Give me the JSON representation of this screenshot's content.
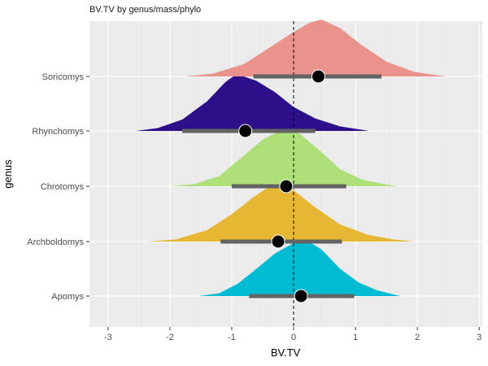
{
  "chart_data": {
    "type": "ridgeline",
    "title": "BV.TV by genus/mass/phylo",
    "xlabel": "BV.TV",
    "ylabel": "genus",
    "xlim": [
      -3.3,
      3.05
    ],
    "x_ticks": [
      "-3",
      "-2",
      "-1",
      "0",
      "1",
      "2",
      "3"
    ],
    "grid": true,
    "reference_line": {
      "x": 0,
      "style": "dashed"
    },
    "series": [
      {
        "name": "Apomys",
        "color": "#00BCD3",
        "density": [
          [
            -1.52,
            0.0
          ],
          [
            -1.2,
            0.05
          ],
          [
            -0.9,
            0.22
          ],
          [
            -0.6,
            0.48
          ],
          [
            -0.3,
            0.75
          ],
          [
            0.0,
            0.93
          ],
          [
            0.18,
            1.0
          ],
          [
            0.45,
            0.82
          ],
          [
            0.75,
            0.48
          ],
          [
            1.05,
            0.24
          ],
          [
            1.35,
            0.1
          ],
          [
            1.72,
            0.0
          ]
        ],
        "point": 0.12,
        "interval": [
          -0.72,
          0.98
        ]
      },
      {
        "name": "Archboldomys",
        "color": "#E7B633",
        "density": [
          [
            -2.35,
            0.0
          ],
          [
            -1.9,
            0.04
          ],
          [
            -1.4,
            0.2
          ],
          [
            -1.0,
            0.48
          ],
          [
            -0.65,
            0.78
          ],
          [
            -0.35,
            1.0
          ],
          [
            0.0,
            0.9
          ],
          [
            0.35,
            0.6
          ],
          [
            0.75,
            0.3
          ],
          [
            1.2,
            0.12
          ],
          [
            1.6,
            0.04
          ],
          [
            1.95,
            0.0
          ]
        ],
        "point": -0.25,
        "interval": [
          -1.18,
          0.78
        ]
      },
      {
        "name": "Chrotomys",
        "color": "#AEDF78",
        "density": [
          [
            -1.98,
            0.0
          ],
          [
            -1.6,
            0.04
          ],
          [
            -1.2,
            0.18
          ],
          [
            -0.85,
            0.5
          ],
          [
            -0.5,
            0.82
          ],
          [
            -0.18,
            1.0
          ],
          [
            0.1,
            0.92
          ],
          [
            0.4,
            0.65
          ],
          [
            0.75,
            0.3
          ],
          [
            1.1,
            0.12
          ],
          [
            1.45,
            0.04
          ],
          [
            1.68,
            0.0
          ]
        ],
        "point": -0.12,
        "interval": [
          -1.0,
          0.85
        ]
      },
      {
        "name": "Rhynchomys",
        "color": "#2D0F89",
        "density": [
          [
            -2.55,
            0.0
          ],
          [
            -2.2,
            0.05
          ],
          [
            -1.8,
            0.2
          ],
          [
            -1.4,
            0.52
          ],
          [
            -1.1,
            0.86
          ],
          [
            -0.92,
            1.0
          ],
          [
            -0.6,
            0.88
          ],
          [
            -0.3,
            0.68
          ],
          [
            0.0,
            0.42
          ],
          [
            0.35,
            0.22
          ],
          [
            0.75,
            0.08
          ],
          [
            1.22,
            0.0
          ]
        ],
        "point": -0.78,
        "interval": [
          -1.8,
          0.35
        ]
      },
      {
        "name": "Soricomys",
        "color": "#E9938C",
        "density": [
          [
            -1.75,
            0.0
          ],
          [
            -1.3,
            0.05
          ],
          [
            -0.8,
            0.22
          ],
          [
            -0.4,
            0.5
          ],
          [
            0.0,
            0.78
          ],
          [
            0.25,
            0.94
          ],
          [
            0.45,
            1.0
          ],
          [
            0.75,
            0.85
          ],
          [
            1.1,
            0.55
          ],
          [
            1.5,
            0.26
          ],
          [
            1.95,
            0.08
          ],
          [
            2.45,
            0.0
          ]
        ],
        "point": 0.4,
        "interval": [
          -0.65,
          1.42
        ]
      }
    ]
  }
}
